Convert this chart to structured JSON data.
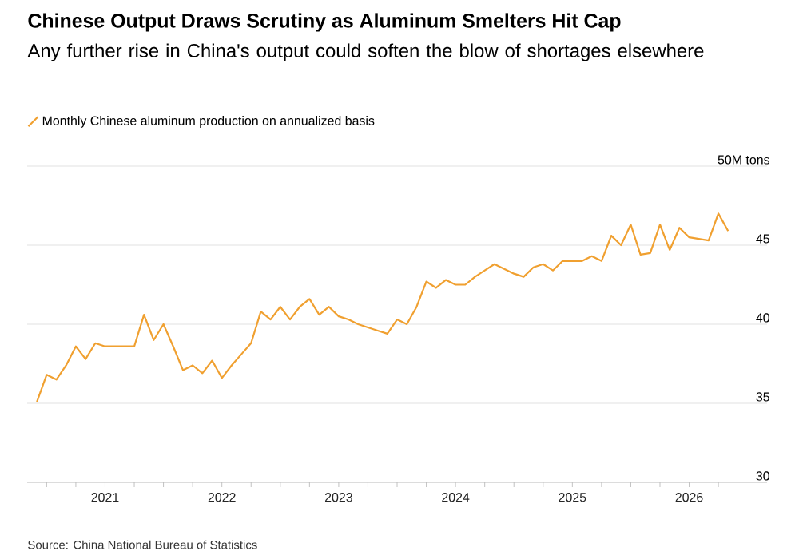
{
  "chart_data": {
    "type": "line",
    "title": "Chinese Output Draws Scrutiny as Aluminum Smelters Hit Cap",
    "subtitle": "Any further rise in China's output could soften the blow of shortages elsewhere",
    "annotations": [
      "Source: China National Bureau of Statistics"
    ],
    "x": [
      "2020-06",
      "2020-07",
      "2020-08",
      "2020-09",
      "2020-10",
      "2020-11",
      "2020-12",
      "2021-01",
      "2021-02",
      "2021-03",
      "2021-04",
      "2021-05",
      "2021-06",
      "2021-07",
      "2021-08",
      "2021-09",
      "2021-10",
      "2021-11",
      "2021-12",
      "2022-01",
      "2022-02",
      "2022-03",
      "2022-04",
      "2022-05",
      "2022-06",
      "2022-07",
      "2022-08",
      "2022-09",
      "2022-10",
      "2022-11",
      "2022-12",
      "2023-01",
      "2023-02",
      "2023-03",
      "2023-04",
      "2023-05",
      "2023-06",
      "2023-07",
      "2023-08",
      "2023-09",
      "2023-10",
      "2023-11",
      "2023-12",
      "2024-01",
      "2024-02",
      "2024-03",
      "2024-04",
      "2024-05",
      "2024-06",
      "2024-07",
      "2024-08",
      "2024-09",
      "2024-10",
      "2024-11",
      "2024-12",
      "2025-01",
      "2025-02",
      "2025-03",
      "2025-04",
      "2025-05",
      "2025-06",
      "2025-07",
      "2025-08",
      "2025-09",
      "2025-10",
      "2025-11",
      "2025-12",
      "2026-01",
      "2026-02",
      "2026-03",
      "2026-04",
      "2026-05"
    ],
    "series": [
      {
        "name": "Monthly Chinese aluminum production on annualized basis",
        "color": "#f0a030",
        "values": [
          35.1,
          36.8,
          36.5,
          37.4,
          38.6,
          37.8,
          38.8,
          38.6,
          38.6,
          38.6,
          38.6,
          40.6,
          39.0,
          40.0,
          38.6,
          37.1,
          37.4,
          36.9,
          37.7,
          36.6,
          37.4,
          38.1,
          38.8,
          40.8,
          40.3,
          41.1,
          40.3,
          41.1,
          41.6,
          40.6,
          41.1,
          40.5,
          40.3,
          40.0,
          39.8,
          39.6,
          39.4,
          40.3,
          40.0,
          41.1,
          42.7,
          42.3,
          42.8,
          42.5,
          42.5,
          43.0,
          43.4,
          43.8,
          43.5,
          43.2,
          43.0,
          43.6,
          43.8,
          43.4,
          44.0,
          44.0,
          44.0,
          44.3,
          44.0,
          45.6,
          45.0,
          46.3,
          44.4,
          44.5,
          46.3,
          44.7,
          46.1,
          45.5,
          45.4,
          45.3,
          47.0,
          45.9
        ]
      }
    ],
    "xlim": [
      "2020-05",
      "2026-09"
    ],
    "xticks": [
      {
        "value": "2020-07",
        "label": null
      },
      {
        "value": "2020-10",
        "label": null
      },
      {
        "value": "2021-01",
        "label": "2021"
      },
      {
        "value": "2021-04",
        "label": null
      },
      {
        "value": "2021-07",
        "label": null
      },
      {
        "value": "2021-10",
        "label": null
      },
      {
        "value": "2022-01",
        "label": "2022"
      },
      {
        "value": "2022-04",
        "label": null
      },
      {
        "value": "2022-07",
        "label": null
      },
      {
        "value": "2022-10",
        "label": null
      },
      {
        "value": "2023-01",
        "label": "2023"
      },
      {
        "value": "2023-04",
        "label": null
      },
      {
        "value": "2023-07",
        "label": null
      },
      {
        "value": "2023-10",
        "label": null
      },
      {
        "value": "2024-01",
        "label": "2024"
      },
      {
        "value": "2024-04",
        "label": null
      },
      {
        "value": "2024-07",
        "label": null
      },
      {
        "value": "2024-10",
        "label": null
      },
      {
        "value": "2025-01",
        "label": "2025"
      },
      {
        "value": "2025-04",
        "label": null
      },
      {
        "value": "2025-07",
        "label": null
      },
      {
        "value": "2025-10",
        "label": null
      },
      {
        "value": "2026-01",
        "label": "2026"
      },
      {
        "value": "2026-04",
        "label": null
      }
    ],
    "ylim": [
      30,
      50
    ],
    "yticks": [
      30,
      35,
      40,
      45,
      {
        "value": 50,
        "label": "50M tons"
      }
    ],
    "grid": "y",
    "legend": "top left"
  }
}
